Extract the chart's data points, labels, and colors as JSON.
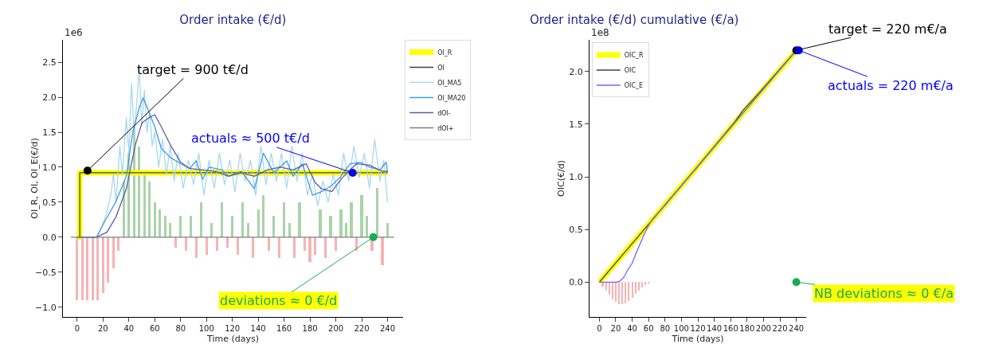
{
  "chart_data": [
    {
      "type": "line",
      "title": "Order intake (€/d)",
      "xlabel": "Time (days)",
      "ylabel": "OI_R, OI, OI_E(€/d)",
      "xlim": [
        -11,
        252
      ],
      "xticks": [
        0,
        20,
        40,
        60,
        80,
        100,
        120,
        140,
        160,
        180,
        200,
        220,
        240
      ],
      "ylim": [
        -1.14,
        2.82
      ],
      "yticks": [
        {
          "value": -1,
          "label": "−1.0"
        },
        {
          "value": -0.5,
          "label": "−0.5"
        },
        {
          "value": 0,
          "label": "0.0"
        },
        {
          "value": 0.5,
          "label": "0.5"
        },
        {
          "value": 1,
          "label": "1.0"
        },
        {
          "value": 1.5,
          "label": "1.5"
        },
        {
          "value": 2,
          "label": "2.0"
        },
        {
          "value": 2.5,
          "label": "2.5"
        }
      ],
      "legend": "top right",
      "annotations": [
        "1e6",
        {
          "text": "target = 900 t€/d",
          "x": 8,
          "y": 0.95
        },
        {
          "text": "actuals ≈ 500 t€/d",
          "x": 213,
          "y": 0.92
        },
        {
          "text": "deviations ≈ 0 €/d",
          "x": 229,
          "y": 0
        }
      ],
      "series": [
        {
          "type": "bar",
          "color": "#a9d3a9",
          "x": [
            36,
            40,
            44,
            48,
            52,
            56,
            60,
            64,
            68,
            72,
            80,
            88,
            96,
            104,
            112,
            120,
            128,
            132,
            140,
            144,
            152,
            160,
            164,
            172,
            188,
            196,
            204,
            208,
            212,
            220,
            224,
            232,
            240
          ],
          "values": [
            0.8,
            1.2,
            1.6,
            1.3,
            0.9,
            0.8,
            0.5,
            0.4,
            0.3,
            0.2,
            0.3,
            0.3,
            0.5,
            0.2,
            0.5,
            0.3,
            0.5,
            0.2,
            0.4,
            0.6,
            0.3,
            0.5,
            0.2,
            0.5,
            0.4,
            0.3,
            0.4,
            0.2,
            0.5,
            0.6,
            0.3,
            0.7,
            0.2
          ]
        },
        {
          "type": "bar",
          "color": "#f7b3b3",
          "x": [
            0,
            4,
            8,
            12,
            16,
            20,
            24,
            28,
            32,
            76,
            84,
            92,
            100,
            108,
            116,
            124,
            136,
            148,
            156,
            168,
            176,
            180,
            184,
            192,
            200,
            216,
            228,
            236
          ],
          "values": [
            -0.9,
            -0.9,
            -0.9,
            -0.9,
            -0.9,
            -0.8,
            -0.65,
            -0.45,
            -0.2,
            -0.15,
            -0.2,
            -0.3,
            -0.25,
            -0.2,
            -0.15,
            -0.25,
            -0.3,
            -0.2,
            -0.3,
            -0.3,
            -0.2,
            -0.35,
            -0.25,
            -0.3,
            -0.2,
            -0.2,
            -0.2,
            -0.4
          ]
        },
        {
          "name": "OI_R",
          "color": "#ffff00",
          "x": [
            0,
            2,
            2,
            240
          ],
          "values": [
            0,
            0,
            0.92,
            0.92
          ]
        },
        {
          "name": "OI",
          "color": "#404040",
          "x": [
            0,
            2,
            2,
            240
          ],
          "values": [
            0,
            0,
            0.92,
            0.92
          ]
        },
        {
          "name": "OI_MA5",
          "color": "#a8d8ef",
          "x": [
            0,
            15,
            18,
            22,
            26,
            28,
            30,
            33,
            35,
            38,
            40,
            42,
            44,
            46,
            48,
            50,
            52,
            54,
            56,
            58,
            60,
            63,
            66,
            69,
            72,
            75,
            78,
            82,
            86,
            90,
            94,
            98,
            102,
            106,
            110,
            114,
            118,
            122,
            126,
            130,
            134,
            138,
            142,
            146,
            150,
            154,
            158,
            162,
            166,
            170,
            174,
            178,
            182,
            186,
            190,
            194,
            198,
            202,
            206,
            210,
            214,
            218,
            222,
            226,
            230,
            234,
            237,
            240
          ],
          "values": [
            0,
            0,
            0.1,
            0.3,
            0.6,
            0.9,
            0.5,
            1.3,
            0.9,
            1.7,
            1.2,
            2.2,
            1.5,
            1.9,
            2.4,
            1.6,
            2.1,
            1.5,
            1.8,
            1.3,
            1.5,
            1.0,
            1.4,
            0.9,
            1.3,
            0.8,
            1.2,
            0.7,
            1.1,
            0.75,
            1.2,
            0.6,
            1.1,
            0.7,
            1.2,
            0.75,
            1.1,
            0.65,
            1.2,
            0.8,
            1.1,
            0.6,
            1.3,
            0.75,
            1.2,
            0.8,
            1.2,
            0.7,
            1.3,
            0.8,
            1.2,
            0.6,
            0.9,
            0.45,
            0.8,
            0.5,
            0.9,
            0.6,
            1.2,
            0.8,
            1.3,
            0.85,
            1.2,
            0.7,
            1.4,
            0.8,
            1.1,
            0.5
          ]
        },
        {
          "name": "OI_MA20",
          "color": "#3d9be9",
          "x": [
            0,
            15,
            20,
            30,
            38,
            43,
            48,
            51,
            55,
            60,
            65,
            72,
            80,
            87,
            92,
            97,
            102,
            112,
            117,
            127,
            137,
            144,
            152,
            162,
            167,
            174,
            182,
            189,
            197,
            204,
            211,
            219,
            226,
            234,
            239,
            240
          ],
          "values": [
            0,
            0,
            0.18,
            0.51,
            0.87,
            1.5,
            1.85,
            1.99,
            1.81,
            1.58,
            1.27,
            1.14,
            1.05,
            0.98,
            1.09,
            0.83,
            1.0,
            0.96,
            0.87,
            0.94,
            0.69,
            1.2,
            0.92,
            1.09,
            0.87,
            1.05,
            0.6,
            0.65,
            0.74,
            0.87,
            1.05,
            1.07,
            1.0,
            0.96,
            1.07,
            0.92
          ]
        },
        {
          "name": "dOI-",
          "color": "#5b5ba8",
          "x": [
            0,
            15,
            23,
            30,
            38,
            45,
            50,
            55,
            60,
            65,
            72,
            80,
            87,
            97,
            107,
            117,
            127,
            137,
            147,
            157,
            167,
            177,
            184,
            189,
            197,
            204,
            211,
            216,
            226,
            236,
            240
          ],
          "values": [
            0,
            0,
            0.07,
            0.29,
            0.69,
            1.32,
            1.63,
            1.7,
            1.75,
            1.58,
            1.32,
            1.07,
            0.98,
            0.96,
            0.94,
            0.87,
            0.92,
            0.87,
            0.96,
            1.0,
            0.96,
            1.05,
            0.78,
            0.69,
            0.65,
            0.83,
            0.96,
            1.05,
            1.03,
            0.94,
            0.94
          ]
        },
        {
          "name": "dOI+",
          "color": "#808080",
          "x": [
            -5,
            245
          ],
          "values": [
            0,
            0
          ]
        },
        {
          "type": "scatter",
          "x": [
            8,
            213,
            229
          ],
          "values": [
            0.95,
            0.92,
            0
          ],
          "colors": [
            "#000000",
            "#0000ff",
            "#1aaa55"
          ]
        }
      ]
    },
    {
      "type": "line",
      "title": "Order intake (€/d) cumulative (€/a)",
      "xlabel": "Time (days)",
      "ylabel": "OIC(€/d)",
      "xlim": [
        -12,
        252
      ],
      "xticks": [
        0,
        20,
        40,
        60,
        80,
        100,
        120,
        140,
        160,
        180,
        200,
        220,
        240
      ],
      "ylim": [
        -0.33,
        2.3
      ],
      "yticks": [
        {
          "value": 0,
          "label": "0.0"
        },
        {
          "value": 0.5,
          "label": "0.5"
        },
        {
          "value": 1,
          "label": "1.0"
        },
        {
          "value": 1.5,
          "label": "1.5"
        },
        {
          "value": 2,
          "label": "2.0"
        }
      ],
      "legend": "top left",
      "annotations": [
        "1e8",
        {
          "text": "target = 220 m€/a",
          "x": 240,
          "y": 2.2
        },
        {
          "text": "actuals = 220 m€/a",
          "x": 243,
          "y": 2.2
        },
        {
          "text": "NB deviations ≈ 0 €/a",
          "x": 240,
          "y": 0
        }
      ],
      "series": [
        {
          "type": "bar",
          "color": "#f7b3b3",
          "x": [
            4,
            8,
            12,
            16,
            20,
            24,
            28,
            32,
            36,
            40,
            44,
            48,
            52,
            56,
            60
          ],
          "values": [
            -0.04,
            -0.08,
            -0.12,
            -0.16,
            -0.19,
            -0.21,
            -0.21,
            -0.2,
            -0.18,
            -0.15,
            -0.11,
            -0.08,
            -0.05,
            -0.03,
            -0.015
          ]
        },
        {
          "name": "OIC_R",
          "color": "#ffff00",
          "x": [
            0,
            240
          ],
          "values": [
            0,
            2.2
          ]
        },
        {
          "name": "OIC",
          "color": "#404040",
          "x": [
            0,
            60,
            120,
            165,
            175,
            195,
            240
          ],
          "values": [
            0,
            0.55,
            1.1,
            1.52,
            1.63,
            1.8,
            2.2
          ]
        },
        {
          "name": "OIC_E",
          "color": "#6b6bff",
          "x": [
            0,
            20,
            25,
            30,
            35,
            40,
            45,
            50,
            55,
            60,
            65,
            80,
            120,
            240
          ],
          "values": [
            0,
            0,
            0.01,
            0.05,
            0.12,
            0.18,
            0.28,
            0.37,
            0.46,
            0.54,
            0.6,
            0.73,
            1.1,
            2.2
          ]
        },
        {
          "type": "scatter",
          "x": [
            240,
            243,
            240
          ],
          "values": [
            2.2,
            2.2,
            0
          ],
          "colors": [
            "#000000",
            "#0000ff",
            "#1aaa55"
          ]
        }
      ]
    }
  ]
}
